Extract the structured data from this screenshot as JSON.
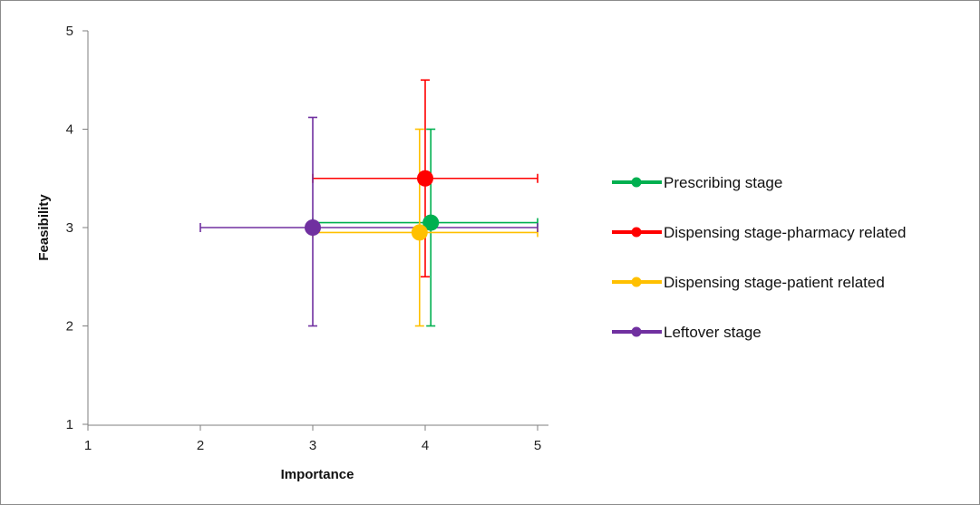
{
  "chart_data": {
    "type": "scatter",
    "title": "",
    "xlabel": "Importance",
    "ylabel": "Feasibility",
    "xlim": [
      1,
      5
    ],
    "ylim": [
      1,
      5
    ],
    "xticks": [
      "1",
      "2",
      "3",
      "4",
      "5"
    ],
    "yticks": [
      "1",
      "2",
      "3",
      "4",
      "5"
    ],
    "grid": false,
    "legend_position": "right",
    "series": [
      {
        "name": "Prescribing stage",
        "color": "#00b050",
        "x": 4.05,
        "y": 3.05,
        "x_err_minus": 1.05,
        "x_err_plus": 0.95,
        "y_err_minus": 1.05,
        "y_err_plus": 0.95
      },
      {
        "name": "Dispensing stage-pharmacy related",
        "color": "#ff0000",
        "x": 4.0,
        "y": 3.5,
        "x_err_minus": 1.0,
        "x_err_plus": 1.0,
        "y_err_minus": 1.0,
        "y_err_plus": 1.0
      },
      {
        "name": "Dispensing stage-patient related",
        "color": "#ffc000",
        "x": 3.95,
        "y": 2.95,
        "x_err_minus": 0.95,
        "x_err_plus": 1.05,
        "y_err_minus": 0.95,
        "y_err_plus": 1.05
      },
      {
        "name": "Leftover stage",
        "color": "#7030a0",
        "x": 3.0,
        "y": 3.0,
        "x_err_minus": 1.0,
        "x_err_plus": 2.0,
        "y_err_minus": 1.0,
        "y_err_plus": 1.12
      }
    ]
  }
}
